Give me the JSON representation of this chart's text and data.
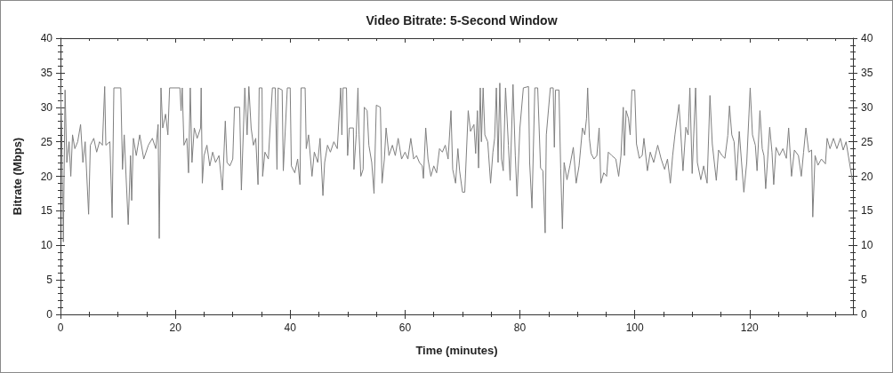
{
  "chart_data": {
    "type": "line",
    "title": "Video Bitrate: 5-Second Window",
    "xlabel": "Time (minutes)",
    "ylabel": "Bitrate (Mbps)",
    "xlim": [
      0,
      138
    ],
    "xticks": [
      0,
      {
        "value": 5,
        "label": null
      },
      {
        "value": 10,
        "label": null
      },
      {
        "value": 15,
        "label": null
      },
      20,
      {
        "value": 25,
        "label": null
      },
      {
        "value": 30,
        "label": null
      },
      {
        "value": 35,
        "label": null
      },
      40,
      {
        "value": 45,
        "label": null
      },
      {
        "value": 50,
        "label": null
      },
      {
        "value": 55,
        "label": null
      },
      60,
      {
        "value": 65,
        "label": null
      },
      {
        "value": 70,
        "label": null
      },
      {
        "value": 75,
        "label": null
      },
      80,
      {
        "value": 85,
        "label": null
      },
      {
        "value": 90,
        "label": null
      },
      {
        "value": 95,
        "label": null
      },
      100,
      {
        "value": 105,
        "label": null
      },
      {
        "value": 110,
        "label": null
      },
      {
        "value": 115,
        "label": null
      },
      120,
      {
        "value": 125,
        "label": null
      },
      {
        "value": 130,
        "label": null
      },
      {
        "value": 135,
        "label": null
      }
    ],
    "ylim": [
      0,
      40
    ],
    "yticks": [
      0,
      {
        "value": 1,
        "label": null
      },
      {
        "value": 2,
        "label": null
      },
      {
        "value": 3,
        "label": null
      },
      {
        "value": 4,
        "label": null
      },
      5,
      {
        "value": 6,
        "label": null
      },
      {
        "value": 7,
        "label": null
      },
      {
        "value": 8,
        "label": null
      },
      {
        "value": 9,
        "label": null
      },
      10,
      {
        "value": 11,
        "label": null
      },
      {
        "value": 12,
        "label": null
      },
      {
        "value": 13,
        "label": null
      },
      {
        "value": 14,
        "label": null
      },
      15,
      {
        "value": 16,
        "label": null
      },
      {
        "value": 17,
        "label": null
      },
      {
        "value": 18,
        "label": null
      },
      {
        "value": 19,
        "label": null
      },
      20,
      {
        "value": 21,
        "label": null
      },
      {
        "value": 22,
        "label": null
      },
      {
        "value": 23,
        "label": null
      },
      {
        "value": 24,
        "label": null
      },
      25,
      {
        "value": 26,
        "label": null
      },
      {
        "value": 27,
        "label": null
      },
      {
        "value": 28,
        "label": null
      },
      {
        "value": 29,
        "label": null
      },
      30,
      {
        "value": 31,
        "label": null
      },
      {
        "value": 32,
        "label": null
      },
      {
        "value": 33,
        "label": null
      },
      {
        "value": 34,
        "label": null
      },
      35,
      {
        "value": 36,
        "label": null
      },
      {
        "value": 37,
        "label": null
      },
      {
        "value": 38,
        "label": null
      },
      {
        "value": 39,
        "label": null
      },
      40
    ],
    "y2lim": [
      0,
      40
    ],
    "y2ticks": [
      0,
      {
        "value": 1,
        "label": null
      },
      {
        "value": 2,
        "label": null
      },
      {
        "value": 3,
        "label": null
      },
      {
        "value": 4,
        "label": null
      },
      5,
      {
        "value": 6,
        "label": null
      },
      {
        "value": 7,
        "label": null
      },
      {
        "value": 8,
        "label": null
      },
      {
        "value": 9,
        "label": null
      },
      10,
      {
        "value": 11,
        "label": null
      },
      {
        "value": 12,
        "label": null
      },
      {
        "value": 13,
        "label": null
      },
      {
        "value": 14,
        "label": null
      },
      15,
      {
        "value": 16,
        "label": null
      },
      {
        "value": 17,
        "label": null
      },
      {
        "value": 18,
        "label": null
      },
      {
        "value": 19,
        "label": null
      },
      20,
      {
        "value": 21,
        "label": null
      },
      {
        "value": 22,
        "label": null
      },
      {
        "value": 23,
        "label": null
      },
      {
        "value": 24,
        "label": null
      },
      25,
      {
        "value": 26,
        "label": null
      },
      {
        "value": 27,
        "label": null
      },
      {
        "value": 28,
        "label": null
      },
      {
        "value": 29,
        "label": null
      },
      30,
      {
        "value": 31,
        "label": null
      },
      {
        "value": 32,
        "label": null
      },
      {
        "value": 33,
        "label": null
      },
      {
        "value": 34,
        "label": null
      },
      35,
      {
        "value": 36,
        "label": null
      },
      {
        "value": 37,
        "label": null
      },
      {
        "value": 38,
        "label": null
      },
      {
        "value": 39,
        "label": null
      },
      40
    ],
    "x": [
      0,
      0.2,
      0.5,
      0.8,
      1.1,
      1.5,
      1.8,
      2.1,
      2.5,
      3,
      3.5,
      3.9,
      4.3,
      4.9,
      5.2,
      5.8,
      6.3,
      6.8,
      7.3,
      7.7,
      7.9,
      8.6,
      9,
      9.3,
      10.5,
      10.8,
      11.1,
      11.8,
      12.2,
      12.4,
      12.7,
      13.2,
      13.8,
      14.5,
      15.3,
      16,
      16.6,
      17,
      17.2,
      17.5,
      17.8,
      18.3,
      18.7,
      19,
      20.8,
      21,
      21.2,
      21.5,
      22,
      22.3,
      22.6,
      22.9,
      23.3,
      23.8,
      24.4,
      24.5,
      24.7,
      25,
      25.5,
      26,
      26.5,
      27,
      27.6,
      28.2,
      28.7,
      29,
      29.5,
      30,
      30.3,
      31.2,
      31.5,
      32.1,
      32.5,
      32.8,
      33.2,
      33.6,
      34,
      34.4,
      34.6,
      35.1,
      35.2,
      35.6,
      36.2,
      36.9,
      37.4,
      37.7,
      37.9,
      38.6,
      38.8,
      39.5,
      40,
      40.2,
      40.8,
      41.3,
      41.7,
      41.9,
      42.6,
      42.8,
      43.2,
      43.8,
      44.2,
      44.8,
      45.2,
      45.7,
      46,
      46.5,
      47,
      47.6,
      48.2,
      48.8,
      49,
      49.2,
      49.8,
      50,
      50.3,
      51,
      51.1,
      51.5,
      51.8,
      52,
      52.3,
      52.7,
      52.9,
      53.4,
      53.7,
      54.2,
      54.6,
      55,
      55.7,
      56,
      56.4,
      56.7,
      57.2,
      57.8,
      58.3,
      58.8,
      59.4,
      60,
      60.5,
      61,
      61.5,
      62,
      62.5,
      63,
      63.2,
      63.6,
      64,
      64.5,
      65,
      65.5,
      66,
      66.5,
      67,
      67.5,
      68,
      68.3,
      68.8,
      69.2,
      69.5,
      70,
      70.4,
      71,
      71.4,
      72,
      72.3,
      72.6,
      72.8,
      73.1,
      73.3,
      73.6,
      73.9,
      74.4,
      74.9,
      75.3,
      75.6,
      75.9,
      76.2,
      76.5,
      76.8,
      77.1,
      77.5,
      78,
      78.3,
      78.8,
      79.2,
      79.5,
      80,
      80.6,
      81.5,
      81.7,
      82.1,
      82.6,
      83.1,
      83.6,
      84,
      84.4,
      84.6,
      85.3,
      85.8,
      86,
      86.2,
      86.8,
      87.1,
      87.4,
      87.7,
      88.2,
      88.7,
      89.3,
      89.8,
      90.3,
      90.9,
      91.3,
      91.6,
      91.8,
      92.1,
      92.4,
      92.9,
      93.4,
      93.8,
      94.1,
      94.6,
      95.1,
      95.4,
      96,
      96.7,
      97.2,
      97.6,
      98,
      98.2,
      98.5,
      98.9,
      99.2,
      99.5,
      100,
      100.3,
      100.8,
      101.3,
      101.6,
      102.2,
      102.7,
      103.3,
      103.8,
      104,
      104.6,
      105.2,
      105.7,
      106.2,
      106.6,
      107,
      107.7,
      108,
      108.4,
      108.9,
      109.3,
      109.6,
      110,
      110.6,
      110.9,
      111.5,
      112,
      112.6,
      113.1,
      113.5,
      114.2,
      114.6,
      115.2,
      115.7,
      116.2,
      116.5,
      116.9,
      117.3,
      117.7,
      118.2,
      118.6,
      119,
      119.5,
      120.1,
      120.5,
      121,
      121.3,
      121.8,
      122.2,
      122.5,
      122.8,
      123.5,
      123.9,
      124.2,
      124.6,
      125.2,
      125.8,
      126.4,
      126.8,
      127.3,
      127.8,
      128.5,
      129,
      129.4,
      129.8,
      130.3,
      130.8,
      131,
      131.4,
      131.9,
      132.5,
      133.2,
      133.5,
      134,
      134.6,
      135.2,
      135.8,
      136.3,
      136.8,
      137.9
    ],
    "series": [
      {
        "color": "#7f7f7f",
        "values": [
          33,
          27,
          10.5,
          32.5,
          22,
          25,
          20,
          26,
          24,
          25,
          27.5,
          22,
          25,
          14.5,
          24.5,
          25.5,
          23.5,
          25,
          24.5,
          33,
          24.5,
          25,
          14,
          32.8,
          32.8,
          21,
          26,
          13,
          23,
          16.5,
          25.5,
          23,
          26,
          22.5,
          24.5,
          25.5,
          24,
          27.5,
          11,
          32.8,
          27,
          29,
          26,
          32.8,
          32.8,
          29.5,
          32.8,
          24.5,
          25.5,
          20.5,
          32.8,
          22,
          27,
          25.5,
          27,
          32.8,
          19,
          23,
          24.5,
          21.5,
          23.5,
          22,
          23,
          18,
          28,
          22,
          21.5,
          22.5,
          30,
          30,
          18,
          32.8,
          26,
          33,
          27,
          24.5,
          25.5,
          18.8,
          32.8,
          32.8,
          20,
          23.5,
          22.5,
          32.8,
          32.8,
          21,
          32.8,
          32.5,
          20.8,
          32.8,
          32.8,
          21.5,
          20.5,
          22.5,
          18.8,
          32.8,
          32.8,
          24,
          26,
          20,
          23.5,
          22,
          25.5,
          17.2,
          22,
          24.5,
          23.5,
          25,
          24,
          32.8,
          26,
          32.8,
          32.8,
          23,
          27,
          27,
          21,
          26,
          32.8,
          26,
          20,
          21,
          30,
          29.5,
          24.5,
          22,
          17.5,
          30.3,
          30,
          19,
          22.5,
          27,
          23,
          24.5,
          23,
          25.5,
          22.5,
          23.5,
          22.5,
          25.5,
          22.5,
          23,
          22,
          21.5,
          19.7,
          27,
          22.5,
          20,
          21.5,
          20.5,
          24,
          23.5,
          24.5,
          22.5,
          29.5,
          21,
          19,
          24,
          20.8,
          17.7,
          17.7,
          29.5,
          26.5,
          27.5,
          23.3,
          29.5,
          21.2,
          32.8,
          25,
          32.8,
          26,
          25,
          19,
          23.5,
          25.5,
          32.8,
          22,
          33.5,
          22.5,
          20.8,
          32.8,
          24.5,
          19.4,
          33.3,
          23,
          17.1,
          27,
          32.8,
          33,
          22,
          15.4,
          32.8,
          32.8,
          21.2,
          20.8,
          11.8,
          26,
          32.8,
          32.8,
          24.2,
          32.5,
          32.5,
          21.2,
          12.4,
          22,
          19.5,
          21.5,
          24.2,
          19,
          21.5,
          27,
          26,
          28.4,
          32.8,
          25.5,
          23.3,
          22.5,
          23,
          27,
          19,
          20.5,
          20,
          23.5,
          23,
          22.5,
          20,
          23,
          30,
          23,
          29.5,
          28.4,
          26,
          32.5,
          32.5,
          24.7,
          22.6,
          23,
          25.5,
          20.8,
          23.5,
          22,
          23.8,
          24.5,
          22.5,
          21,
          22.5,
          19,
          23,
          26,
          30.4,
          26.5,
          20.8,
          27.1,
          26,
          32.8,
          20.4,
          32.8,
          22,
          19.5,
          21.5,
          19,
          31.7,
          24.7,
          19.4,
          23.8,
          23,
          22.6,
          25.9,
          30.2,
          26,
          25,
          19.4,
          26.5,
          22,
          17.7,
          22,
          32.8,
          26,
          24.5,
          20.8,
          29.5,
          24,
          23,
          18.2,
          27.1,
          23.5,
          18.8,
          24.2,
          23,
          24,
          22.6,
          27,
          20,
          23.8,
          23,
          20,
          23.5,
          27,
          23.5,
          23.8,
          14.1,
          23,
          21.6,
          22.5,
          21.8,
          25.5,
          24,
          25.5,
          24,
          25.5,
          23.8,
          25,
          19.4
        ]
      }
    ]
  }
}
